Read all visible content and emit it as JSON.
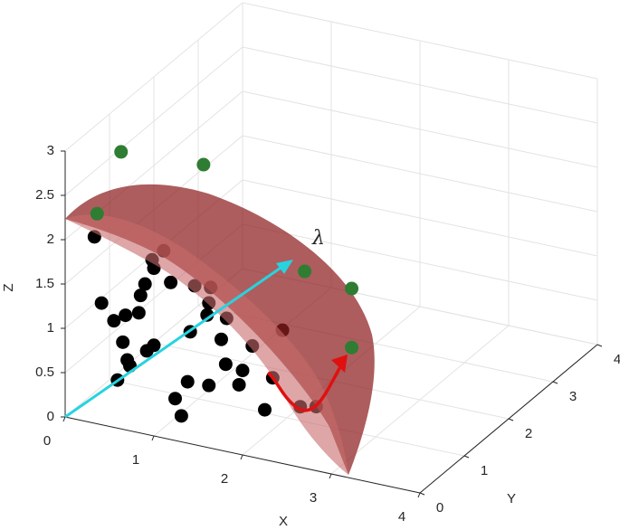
{
  "chart_data": {
    "type": "scatter3d",
    "xlabel": "X",
    "ylabel": "Y",
    "zlabel": "Z",
    "annotation": "λ",
    "xlim": [
      0,
      4
    ],
    "ylim": [
      0,
      4
    ],
    "zlim": [
      0,
      3
    ],
    "xticks": [
      0,
      1,
      2,
      3,
      4
    ],
    "yticks": [
      0,
      1,
      2,
      3,
      4
    ],
    "zticks": [
      0,
      0.5,
      1,
      1.5,
      2,
      2.5,
      3
    ],
    "grid": true,
    "series": [
      {
        "color": "#000000",
        "x": [
          0.08,
          0.86,
          0.73,
          0.75,
          0.94,
          0.65,
          0.6,
          1.21,
          1.39,
          0.16,
          0.43,
          0.3,
          0.58,
          1.37,
          1.35,
          1.57,
          1.16,
          0.75,
          0.67,
          0.4,
          0.45,
          0.48,
          1.51,
          1.86,
          1.56,
          1.75,
          0.34,
          1.13,
          1.37,
          0.99,
          1.71,
          1.06,
          2.0,
          2.2,
          2.09,
          2.4,
          2.58
        ],
        "y": [
          0.5,
          0.5,
          0.5,
          0.5,
          0.5,
          0.5,
          0.5,
          0.5,
          0.5,
          0.5,
          0.5,
          0.5,
          0.5,
          0.5,
          0.5,
          0.5,
          0.5,
          0.5,
          0.5,
          0.5,
          0.5,
          0.5,
          0.5,
          0.5,
          0.5,
          0.5,
          0.5,
          0.5,
          0.5,
          0.5,
          0.5,
          0.5,
          0.5,
          0.5,
          0.5,
          0.5,
          0.5
        ],
        "z": [
          1.84,
          1.85,
          1.72,
          1.63,
          1.51,
          1.43,
          1.29,
          1.53,
          1.55,
          1.11,
          1.03,
          0.94,
          1.09,
          1.37,
          1.23,
          1.24,
          1.0,
          0.76,
          0.68,
          0.72,
          0.53,
          0.47,
          0.99,
          0.99,
          0.72,
          0.69,
          0.28,
          0.43,
          0.44,
          0.21,
          0.52,
          0.03,
          0.3,
          1.24,
          0.68,
          0.42,
          0.46
        ]
      },
      {
        "color": "#2e7d32",
        "x": [
          0.36,
          0.13,
          0.56,
          1.7,
          2.23,
          2.73
        ],
        "y": [
          0,
          1,
          2,
          2,
          2,
          1
        ],
        "z": [
          2.37,
          2.6,
          2.13,
          1.17,
          1.09,
          0.95
        ]
      }
    ]
  }
}
